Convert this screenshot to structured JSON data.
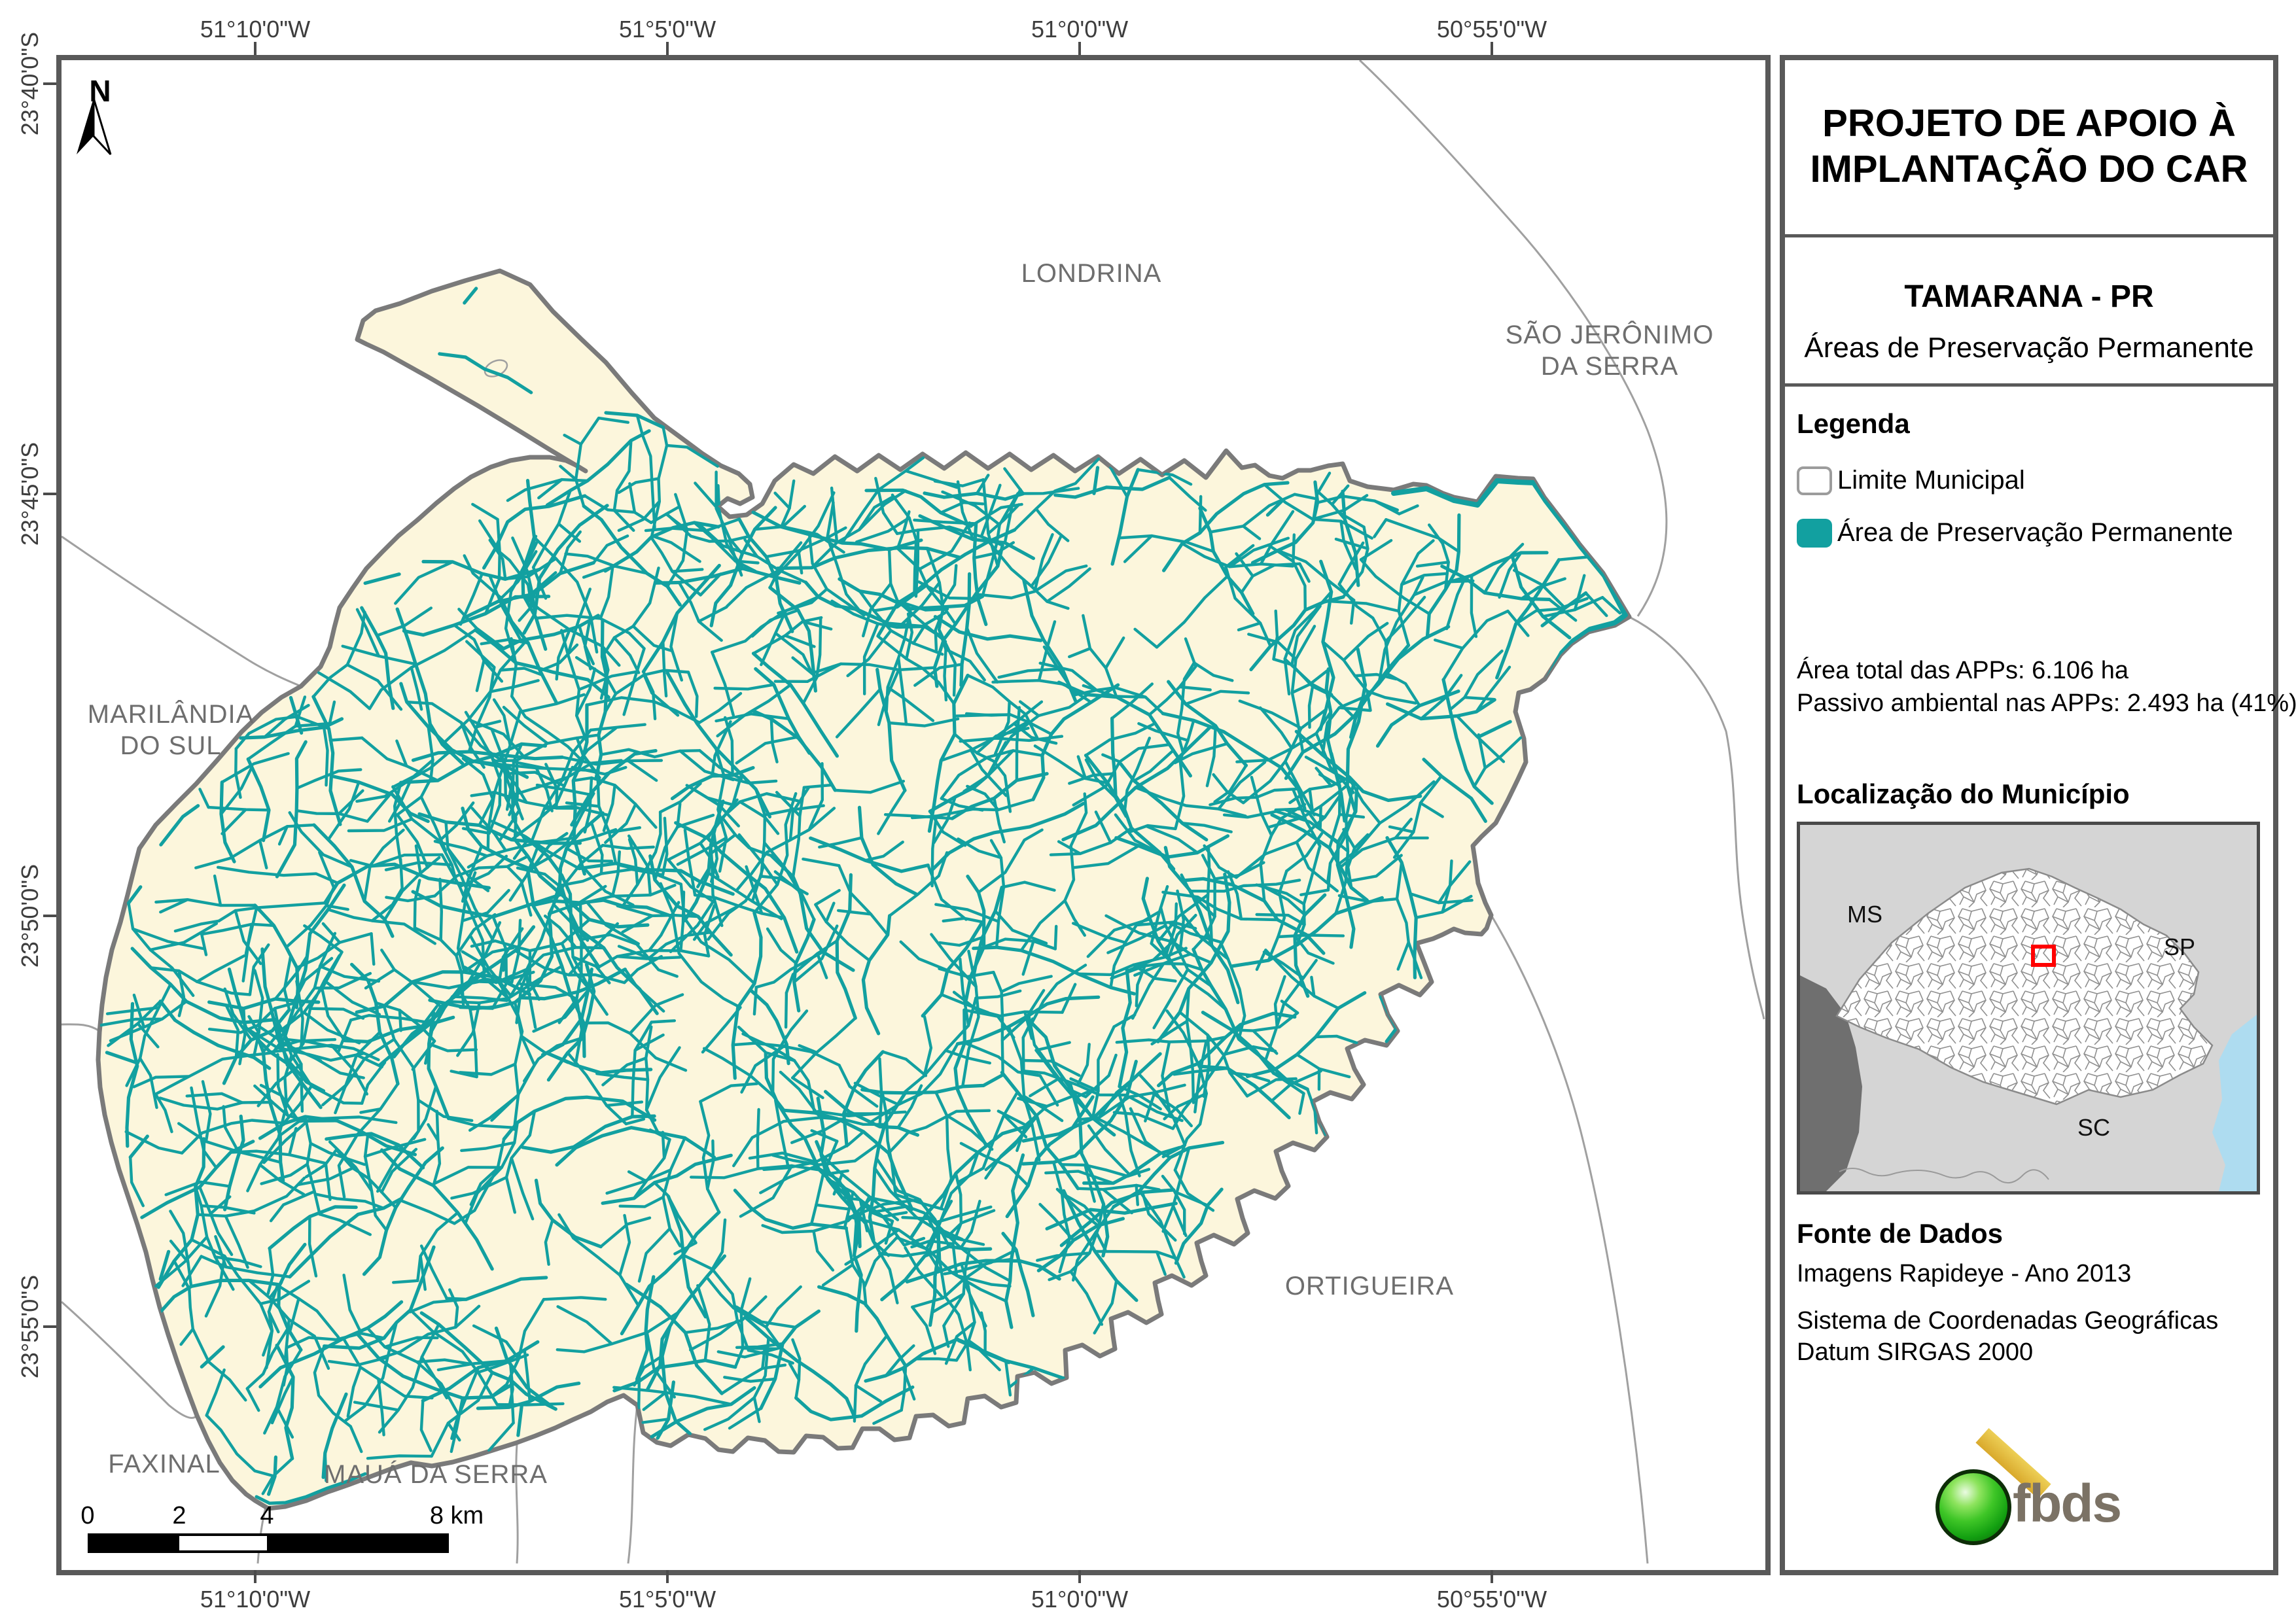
{
  "header": {
    "project_line1": "PROJETO DE APOIO À",
    "project_line2": "IMPLANTAÇÃO DO CAR",
    "municipality": "TAMARANA - PR",
    "map_theme": "Áreas de Preservação Permanente"
  },
  "legend": {
    "heading": "Legenda",
    "item_limit": "Limite Municipal",
    "item_app": "Área de Preservação Permanente",
    "stats_line1": "Área total das APPs: 6.106 ha",
    "stats_line2": "Passivo ambiental nas APPs: 2.493 ha (41%)"
  },
  "localization": {
    "heading": "Localização do Município",
    "state_ms": "MS",
    "state_sp": "SP",
    "state_sc": "SC"
  },
  "source": {
    "heading": "Fonte de Dados",
    "line1": "Imagens Rapideye - Ano 2013",
    "line2": "Sistema de Coordenadas Geográficas",
    "line3": "Datum SIRGAS 2000"
  },
  "logo": {
    "text": "fbds"
  },
  "compass": {
    "label": "N"
  },
  "scalebar": {
    "t0": "0",
    "t2": "2",
    "t4": "4",
    "t8": "8 km"
  },
  "graticule": {
    "top": [
      "51°10'0\"W",
      "51°5'0\"W",
      "51°0'0\"W",
      "50°55'0\"W"
    ],
    "bottom": [
      "51°10'0\"W",
      "51°5'0\"W",
      "51°0'0\"W",
      "50°55'0\"W"
    ],
    "left": [
      "23°40'0\"S",
      "23°45'0\"S",
      "23°50'0\"S",
      "23°55'0\"S"
    ]
  },
  "neighbors": {
    "londrina": "LONDRINA",
    "sao_jeronimo_l1": "SÃO JERÔNIMO",
    "sao_jeronimo_l2": "DA SERRA",
    "marilandia_l1": "MARILÂNDIA",
    "marilandia_l2": "DO SUL",
    "ortigueira": "ORTIGUEIRA",
    "faxinal": "FAXINAL",
    "maua": "MAUÁ DA SERRA"
  },
  "colors": {
    "app_teal": "#12a0a0",
    "muni_fill": "#fcf6dc",
    "muni_border": "#7a7a7a",
    "neighbor_line": "#a0a0a0",
    "frame": "#595959",
    "inset_bg": "#d5d5d5",
    "inset_dark_region": "#6f6f6f",
    "inset_ocean": "#aedcf0",
    "inset_cell_line": "#8f8f8f",
    "locator_red": "#ff0000"
  }
}
